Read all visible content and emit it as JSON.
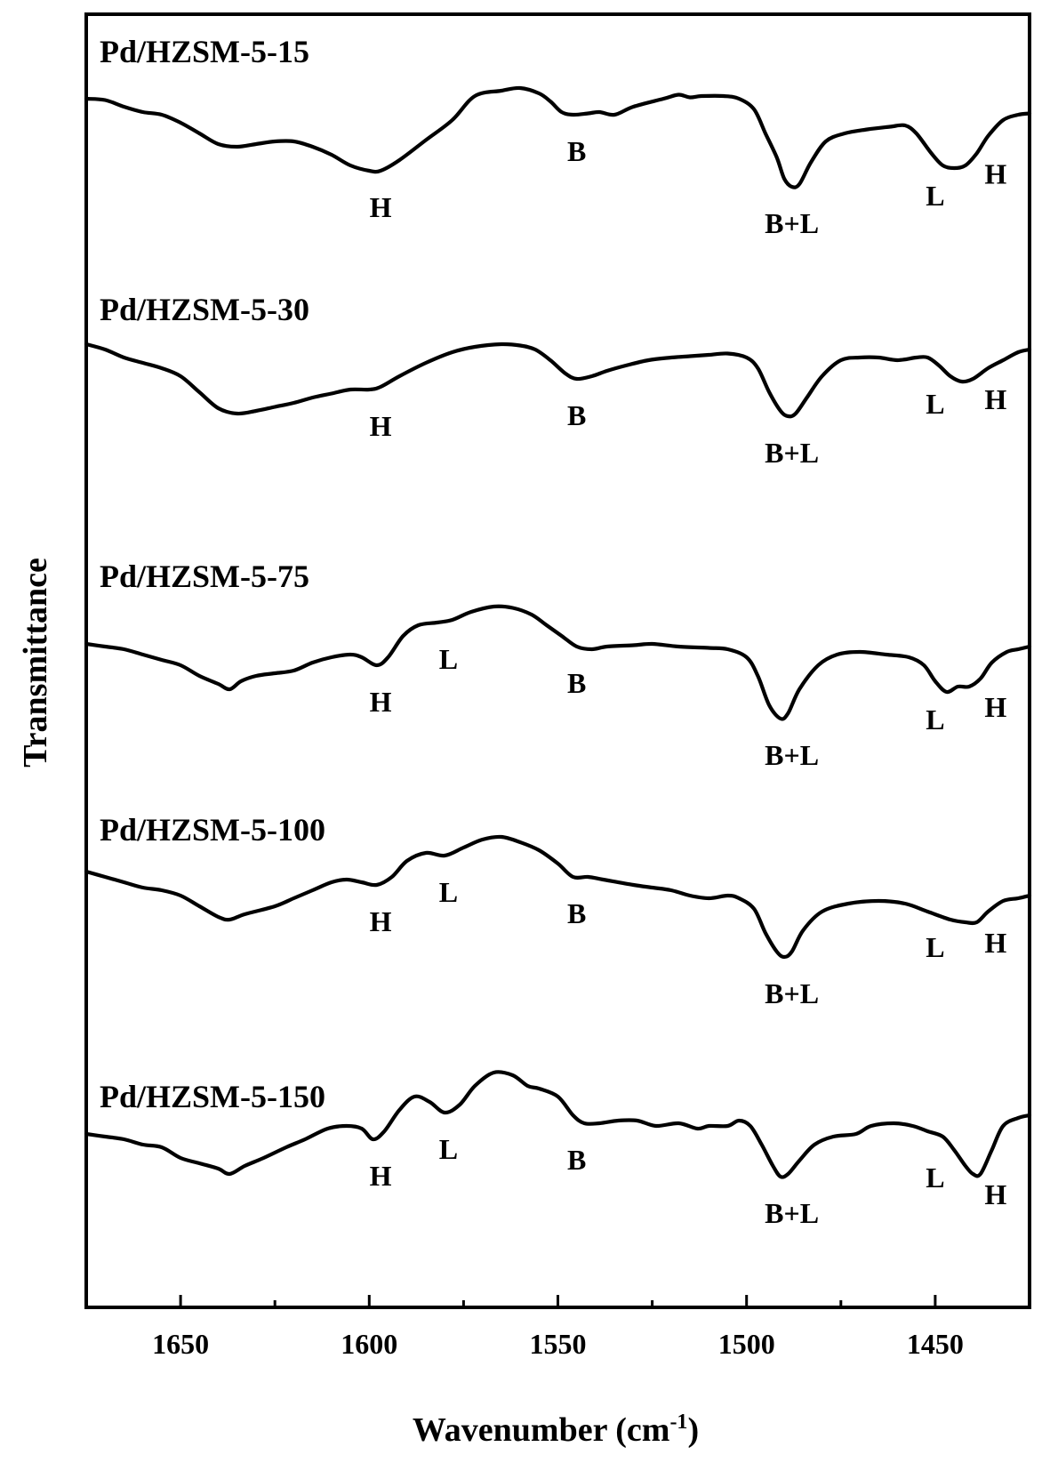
{
  "chart_data": {
    "type": "line",
    "title": "",
    "xlabel": "Wavenumber (cm",
    "xlabel_sup": "-1",
    "xlabel_close": ")",
    "ylabel": "Transmittance",
    "xlim": [
      1675,
      1425
    ],
    "x_reversed": true,
    "ticks": [
      1650,
      1600,
      1550,
      1500,
      1450
    ],
    "tick_labels": [
      "1650",
      "1600",
      "1550",
      "1500",
      "1450"
    ],
    "grid": false,
    "legend": "none",
    "offset_stacked": true,
    "series": [
      {
        "name": "Pd/HZSM-5-15",
        "points": [
          [
            1675,
            86
          ],
          [
            1670,
            85
          ],
          [
            1665,
            80
          ],
          [
            1660,
            76
          ],
          [
            1655,
            74
          ],
          [
            1650,
            68
          ],
          [
            1645,
            60
          ],
          [
            1640,
            52
          ],
          [
            1635,
            50
          ],
          [
            1630,
            52
          ],
          [
            1625,
            54
          ],
          [
            1620,
            54
          ],
          [
            1615,
            50
          ],
          [
            1610,
            44
          ],
          [
            1605,
            36
          ],
          [
            1600,
            32
          ],
          [
            1597,
            32
          ],
          [
            1592,
            40
          ],
          [
            1585,
            55
          ],
          [
            1578,
            70
          ],
          [
            1572,
            88
          ],
          [
            1565,
            92
          ],
          [
            1560,
            94
          ],
          [
            1555,
            90
          ],
          [
            1552,
            84
          ],
          [
            1549,
            76
          ],
          [
            1546,
            74
          ],
          [
            1542,
            75
          ],
          [
            1539,
            76
          ],
          [
            1535,
            74
          ],
          [
            1530,
            80
          ],
          [
            1522,
            86
          ],
          [
            1518,
            89
          ],
          [
            1515,
            87
          ],
          [
            1512,
            88
          ],
          [
            1506,
            88
          ],
          [
            1502,
            86
          ],
          [
            1498,
            78
          ],
          [
            1495,
            60
          ],
          [
            1492,
            42
          ],
          [
            1490,
            26
          ],
          [
            1488,
            20
          ],
          [
            1486,
            22
          ],
          [
            1483,
            38
          ],
          [
            1479,
            54
          ],
          [
            1474,
            60
          ],
          [
            1468,
            63
          ],
          [
            1462,
            65
          ],
          [
            1458,
            66
          ],
          [
            1455,
            60
          ],
          [
            1451,
            45
          ],
          [
            1448,
            36
          ],
          [
            1445,
            34
          ],
          [
            1442,
            36
          ],
          [
            1439,
            45
          ],
          [
            1436,
            58
          ],
          [
            1432,
            70
          ],
          [
            1428,
            74
          ],
          [
            1425,
            75
          ]
        ],
        "labels": [
          {
            "text": "H",
            "x": 1597
          },
          {
            "text": "B",
            "x": 1545
          },
          {
            "text": "B+L",
            "x": 1488
          },
          {
            "text": "L",
            "x": 1448
          },
          {
            "text": "H",
            "x": 1438
          }
        ]
      },
      {
        "name": "Pd/HZSM-5-30",
        "points": [
          [
            1675,
            92
          ],
          [
            1670,
            88
          ],
          [
            1665,
            82
          ],
          [
            1660,
            78
          ],
          [
            1655,
            74
          ],
          [
            1650,
            68
          ],
          [
            1645,
            56
          ],
          [
            1640,
            44
          ],
          [
            1635,
            40
          ],
          [
            1630,
            42
          ],
          [
            1625,
            45
          ],
          [
            1620,
            48
          ],
          [
            1615,
            52
          ],
          [
            1610,
            55
          ],
          [
            1605,
            58
          ],
          [
            1600,
            58
          ],
          [
            1597,
            60
          ],
          [
            1592,
            68
          ],
          [
            1585,
            78
          ],
          [
            1578,
            86
          ],
          [
            1572,
            90
          ],
          [
            1565,
            92
          ],
          [
            1560,
            91
          ],
          [
            1556,
            88
          ],
          [
            1552,
            80
          ],
          [
            1548,
            70
          ],
          [
            1545,
            66
          ],
          [
            1541,
            68
          ],
          [
            1537,
            72
          ],
          [
            1532,
            76
          ],
          [
            1526,
            80
          ],
          [
            1520,
            82
          ],
          [
            1515,
            83
          ],
          [
            1510,
            84
          ],
          [
            1505,
            85
          ],
          [
            1500,
            82
          ],
          [
            1497,
            74
          ],
          [
            1494,
            56
          ],
          [
            1491,
            42
          ],
          [
            1489,
            38
          ],
          [
            1487,
            40
          ],
          [
            1484,
            52
          ],
          [
            1480,
            68
          ],
          [
            1475,
            80
          ],
          [
            1470,
            82
          ],
          [
            1465,
            82
          ],
          [
            1460,
            80
          ],
          [
            1455,
            82
          ],
          [
            1452,
            82
          ],
          [
            1449,
            76
          ],
          [
            1446,
            68
          ],
          [
            1443,
            64
          ],
          [
            1440,
            66
          ],
          [
            1436,
            74
          ],
          [
            1432,
            80
          ],
          [
            1428,
            86
          ],
          [
            1425,
            88
          ]
        ],
        "labels": [
          {
            "text": "H",
            "x": 1597
          },
          {
            "text": "B",
            "x": 1545
          },
          {
            "text": "B+L",
            "x": 1488
          },
          {
            "text": "L",
            "x": 1448
          },
          {
            "text": "H",
            "x": 1438
          }
        ]
      },
      {
        "name": "Pd/HZSM-5-75",
        "points": [
          [
            1675,
            72
          ],
          [
            1670,
            70
          ],
          [
            1665,
            68
          ],
          [
            1660,
            64
          ],
          [
            1655,
            60
          ],
          [
            1650,
            56
          ],
          [
            1645,
            48
          ],
          [
            1640,
            42
          ],
          [
            1637,
            38
          ],
          [
            1634,
            44
          ],
          [
            1630,
            48
          ],
          [
            1625,
            50
          ],
          [
            1620,
            52
          ],
          [
            1615,
            58
          ],
          [
            1610,
            62
          ],
          [
            1605,
            64
          ],
          [
            1602,
            62
          ],
          [
            1598,
            56
          ],
          [
            1595,
            62
          ],
          [
            1591,
            78
          ],
          [
            1587,
            86
          ],
          [
            1582,
            88
          ],
          [
            1578,
            90
          ],
          [
            1573,
            96
          ],
          [
            1567,
            100
          ],
          [
            1562,
            99
          ],
          [
            1557,
            94
          ],
          [
            1553,
            86
          ],
          [
            1549,
            78
          ],
          [
            1545,
            70
          ],
          [
            1541,
            68
          ],
          [
            1537,
            70
          ],
          [
            1530,
            71
          ],
          [
            1525,
            72
          ],
          [
            1518,
            70
          ],
          [
            1510,
            69
          ],
          [
            1505,
            68
          ],
          [
            1500,
            62
          ],
          [
            1497,
            48
          ],
          [
            1494,
            26
          ],
          [
            1491,
            16
          ],
          [
            1489,
            20
          ],
          [
            1486,
            38
          ],
          [
            1481,
            56
          ],
          [
            1476,
            64
          ],
          [
            1470,
            66
          ],
          [
            1463,
            64
          ],
          [
            1457,
            62
          ],
          [
            1453,
            56
          ],
          [
            1450,
            44
          ],
          [
            1447,
            36
          ],
          [
            1444,
            40
          ],
          [
            1441,
            40
          ],
          [
            1438,
            46
          ],
          [
            1435,
            58
          ],
          [
            1431,
            66
          ],
          [
            1428,
            68
          ],
          [
            1425,
            70
          ]
        ],
        "labels": [
          {
            "text": "H",
            "x": 1597
          },
          {
            "text": "L",
            "x": 1579
          },
          {
            "text": "B",
            "x": 1545
          },
          {
            "text": "B+L",
            "x": 1488
          },
          {
            "text": "L",
            "x": 1448
          },
          {
            "text": "H",
            "x": 1438
          }
        ]
      },
      {
        "name": "Pd/HZSM-5-100",
        "points": [
          [
            1675,
            90
          ],
          [
            1670,
            86
          ],
          [
            1665,
            82
          ],
          [
            1660,
            78
          ],
          [
            1655,
            76
          ],
          [
            1650,
            72
          ],
          [
            1645,
            64
          ],
          [
            1640,
            56
          ],
          [
            1637,
            54
          ],
          [
            1633,
            58
          ],
          [
            1625,
            64
          ],
          [
            1620,
            70
          ],
          [
            1615,
            76
          ],
          [
            1610,
            82
          ],
          [
            1606,
            84
          ],
          [
            1602,
            82
          ],
          [
            1598,
            80
          ],
          [
            1594,
            86
          ],
          [
            1590,
            98
          ],
          [
            1585,
            104
          ],
          [
            1580,
            102
          ],
          [
            1575,
            108
          ],
          [
            1570,
            114
          ],
          [
            1565,
            116
          ],
          [
            1560,
            112
          ],
          [
            1555,
            106
          ],
          [
            1550,
            96
          ],
          [
            1546,
            86
          ],
          [
            1542,
            86
          ],
          [
            1538,
            84
          ],
          [
            1530,
            80
          ],
          [
            1525,
            78
          ],
          [
            1520,
            76
          ],
          [
            1515,
            72
          ],
          [
            1510,
            70
          ],
          [
            1505,
            72
          ],
          [
            1502,
            70
          ],
          [
            1498,
            62
          ],
          [
            1495,
            44
          ],
          [
            1492,
            30
          ],
          [
            1490,
            26
          ],
          [
            1488,
            30
          ],
          [
            1485,
            46
          ],
          [
            1480,
            60
          ],
          [
            1473,
            66
          ],
          [
            1465,
            68
          ],
          [
            1458,
            66
          ],
          [
            1452,
            60
          ],
          [
            1446,
            54
          ],
          [
            1442,
            52
          ],
          [
            1439,
            52
          ],
          [
            1436,
            60
          ],
          [
            1432,
            68
          ],
          [
            1428,
            70
          ],
          [
            1425,
            72
          ]
        ],
        "labels": [
          {
            "text": "H",
            "x": 1597
          },
          {
            "text": "L",
            "x": 1579
          },
          {
            "text": "B",
            "x": 1545
          },
          {
            "text": "B+L",
            "x": 1488
          },
          {
            "text": "L",
            "x": 1448
          },
          {
            "text": "H",
            "x": 1438
          }
        ]
      },
      {
        "name": "Pd/HZSM-5-150",
        "points": [
          [
            1675,
            80
          ],
          [
            1670,
            78
          ],
          [
            1665,
            76
          ],
          [
            1660,
            72
          ],
          [
            1655,
            70
          ],
          [
            1650,
            62
          ],
          [
            1645,
            58
          ],
          [
            1640,
            54
          ],
          [
            1637,
            50
          ],
          [
            1633,
            56
          ],
          [
            1628,
            62
          ],
          [
            1622,
            70
          ],
          [
            1617,
            76
          ],
          [
            1611,
            84
          ],
          [
            1606,
            86
          ],
          [
            1602,
            84
          ],
          [
            1599,
            76
          ],
          [
            1596,
            82
          ],
          [
            1592,
            98
          ],
          [
            1588,
            108
          ],
          [
            1584,
            104
          ],
          [
            1580,
            96
          ],
          [
            1576,
            102
          ],
          [
            1572,
            116
          ],
          [
            1567,
            126
          ],
          [
            1562,
            124
          ],
          [
            1558,
            116
          ],
          [
            1555,
            114
          ],
          [
            1550,
            108
          ],
          [
            1546,
            94
          ],
          [
            1543,
            88
          ],
          [
            1539,
            88
          ],
          [
            1534,
            90
          ],
          [
            1529,
            90
          ],
          [
            1524,
            86
          ],
          [
            1518,
            88
          ],
          [
            1513,
            84
          ],
          [
            1510,
            86
          ],
          [
            1505,
            86
          ],
          [
            1502,
            90
          ],
          [
            1499,
            86
          ],
          [
            1496,
            72
          ],
          [
            1493,
            56
          ],
          [
            1491,
            48
          ],
          [
            1489,
            50
          ],
          [
            1486,
            60
          ],
          [
            1482,
            72
          ],
          [
            1477,
            78
          ],
          [
            1471,
            80
          ],
          [
            1467,
            86
          ],
          [
            1461,
            88
          ],
          [
            1456,
            86
          ],
          [
            1452,
            82
          ],
          [
            1448,
            78
          ],
          [
            1445,
            68
          ],
          [
            1442,
            56
          ],
          [
            1440,
            50
          ],
          [
            1438,
            50
          ],
          [
            1435,
            68
          ],
          [
            1432,
            86
          ],
          [
            1428,
            92
          ],
          [
            1425,
            94
          ]
        ],
        "labels": [
          {
            "text": "H",
            "x": 1597
          },
          {
            "text": "L",
            "x": 1579
          },
          {
            "text": "B",
            "x": 1545
          },
          {
            "text": "B+L",
            "x": 1488
          },
          {
            "text": "L",
            "x": 1448
          },
          {
            "text": "H",
            "x": 1438
          }
        ]
      }
    ]
  }
}
